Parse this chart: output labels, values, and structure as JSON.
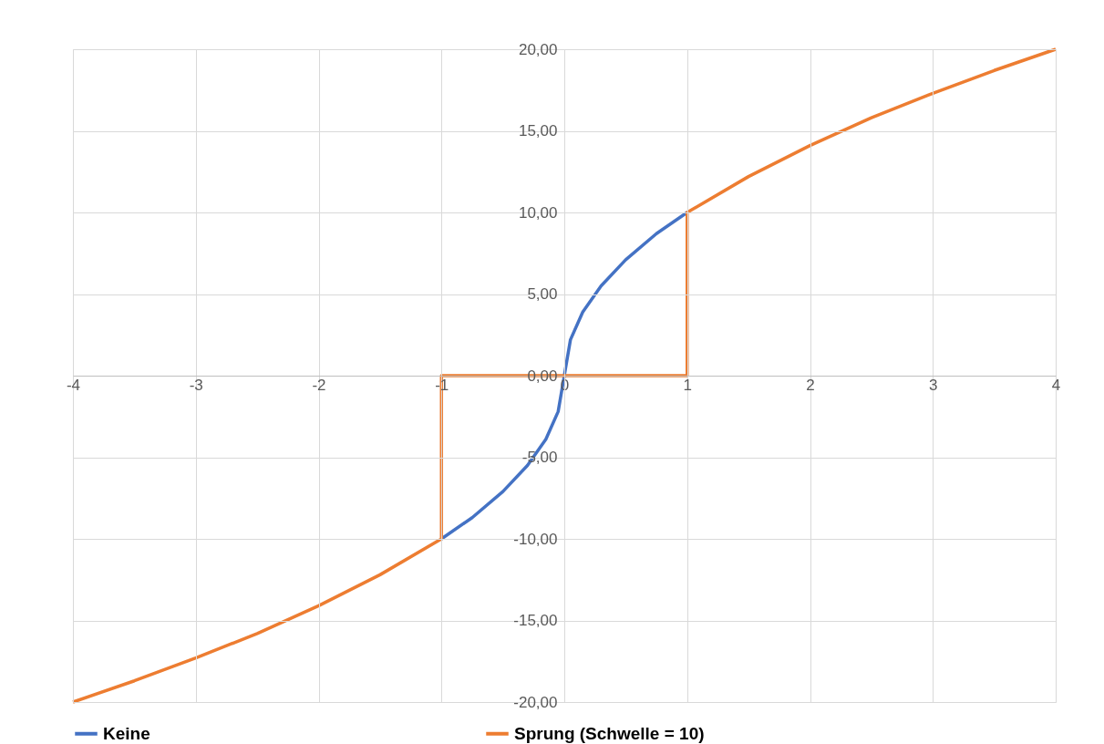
{
  "chart_data": {
    "type": "line",
    "series": [
      {
        "name": "Keine",
        "color": "#4472c4",
        "x": [
          -1,
          -0.75,
          -0.5,
          -0.3,
          -0.15,
          -0.05,
          0,
          0.05,
          0.15,
          0.3,
          0.5,
          0.75,
          1
        ],
        "values": [
          -10,
          -8.7,
          -7.1,
          -5.5,
          -3.9,
          -2.2,
          0,
          2.2,
          3.9,
          5.5,
          7.1,
          8.7,
          10
        ]
      },
      {
        "name": "Sprung (Schwelle = 10)",
        "color": "#ed7d31",
        "x": [
          -4,
          -3.5,
          -3,
          -2.5,
          -2,
          -1.5,
          -1,
          -1,
          1,
          1,
          1.5,
          2,
          2.5,
          3,
          3.5,
          4
        ],
        "values": [
          -20,
          -18.7,
          -17.3,
          -15.8,
          -14.1,
          -12.2,
          -10,
          0,
          0,
          10,
          12.2,
          14.1,
          15.8,
          17.3,
          18.7,
          20
        ]
      }
    ],
    "xlim": [
      -4,
      4
    ],
    "xticks": [
      -4,
      -3,
      -2,
      -1,
      0,
      1,
      2,
      3,
      4
    ],
    "ylim": [
      -20,
      20
    ],
    "yticks": [
      {
        "value": -20,
        "label": "-20,00"
      },
      {
        "value": -15,
        "label": "-15,00"
      },
      {
        "value": -10,
        "label": "-10,00"
      },
      {
        "value": -5,
        "label": "-5,00"
      },
      {
        "value": 0,
        "label": "0,00"
      },
      {
        "value": 5,
        "label": "5,00"
      },
      {
        "value": 10,
        "label": "10,00"
      },
      {
        "value": 15,
        "label": "15,00"
      },
      {
        "value": 20,
        "label": "20,00"
      }
    ],
    "grid": true,
    "legend": "bottom",
    "line_style": "solid",
    "marker": "none"
  }
}
